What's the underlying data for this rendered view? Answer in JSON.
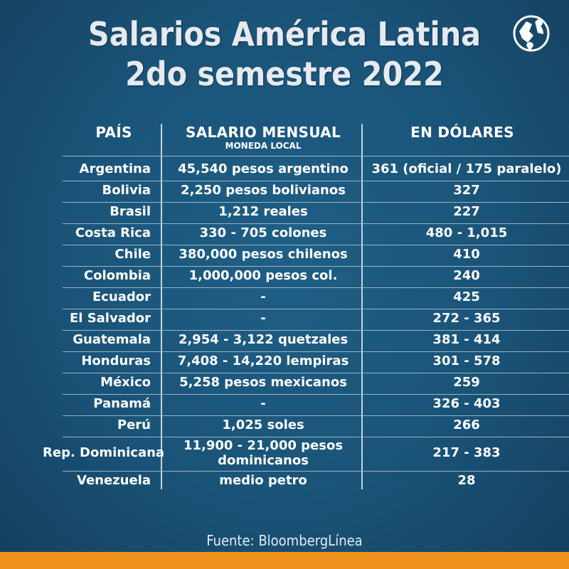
{
  "title_line1": "Salarios América Latina",
  "title_line2": "2do semestre 2022",
  "headers": {
    "country": "PAÍS",
    "salary": "SALARIO MENSUAL",
    "salary_sub": "MONEDA LOCAL",
    "usd": "EN DÓLARES"
  },
  "rows": [
    {
      "country": "Argentina",
      "salary": "45,540 pesos argentino",
      "usd": "361 (oficial / 175 paralelo)"
    },
    {
      "country": "Bolivia",
      "salary": "2,250 pesos bolivianos",
      "usd": "327"
    },
    {
      "country": "Brasil",
      "salary": "1,212 reales",
      "usd": "227"
    },
    {
      "country": "Costa Rica",
      "salary": "330 - 705 colones",
      "usd": "480 - 1,015"
    },
    {
      "country": "Chile",
      "salary": "380,000 pesos chilenos",
      "usd": "410"
    },
    {
      "country": "Colombia",
      "salary": "1,000,000 pesos col.",
      "usd": "240"
    },
    {
      "country": "Ecuador",
      "salary": "-",
      "usd": "425"
    },
    {
      "country": "El Salvador",
      "salary": "-",
      "usd": "272 - 365"
    },
    {
      "country": "Guatemala",
      "salary": "2,954 - 3,122 quetzales",
      "usd": "381 - 414"
    },
    {
      "country": "Honduras",
      "salary": "7,408 - 14,220 lempiras",
      "usd": "301 - 578"
    },
    {
      "country": "México",
      "salary": "5,258 pesos mexicanos",
      "usd": "259"
    },
    {
      "country": "Panamá",
      "salary": "-",
      "usd": "326 - 403"
    },
    {
      "country": "Perú",
      "salary": "1,025 soles",
      "usd": "266"
    },
    {
      "country": "Rep. Dominicana",
      "salary": "11,900 - 21,000 pesos dominicanos",
      "usd": "217 - 383"
    },
    {
      "country": "Venezuela",
      "salary": "medio petro",
      "usd": "28"
    }
  ],
  "source": "Fuente: BloombergLínea",
  "colors": {
    "background": "#1a5378",
    "accent_bar": "#f0901c",
    "text": "#ffffff"
  },
  "icons": {
    "logo": "globe-logo-icon"
  }
}
